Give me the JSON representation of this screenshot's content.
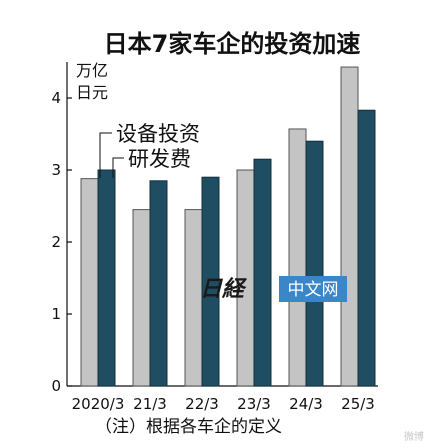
{
  "chart_data": {
    "type": "bar",
    "title": "日本7家车企的投资加速",
    "ylabel_line1": "万亿",
    "ylabel_line2": "日元",
    "ylim": [
      0,
      4.4
    ],
    "yticks": [
      "0",
      "1",
      "2",
      "3",
      "4"
    ],
    "categories": [
      "2020/3",
      "21/3",
      "22/3",
      "23/3",
      "24/3",
      "25/3"
    ],
    "series": [
      {
        "name": "设备投资",
        "color": "#c4c4c4",
        "values": [
          2.88,
          2.45,
          2.45,
          3.0,
          3.57,
          4.43
        ]
      },
      {
        "name": "研发费",
        "color": "#1f4e63",
        "values": [
          3.0,
          2.85,
          2.9,
          3.15,
          3.4,
          3.83
        ]
      }
    ],
    "grid": false,
    "legend": "top-left"
  },
  "footnote": "（注）根据各车企的定义",
  "watermark": {
    "brand": "日経",
    "site": "中文网"
  },
  "weibo_mark": "微博"
}
